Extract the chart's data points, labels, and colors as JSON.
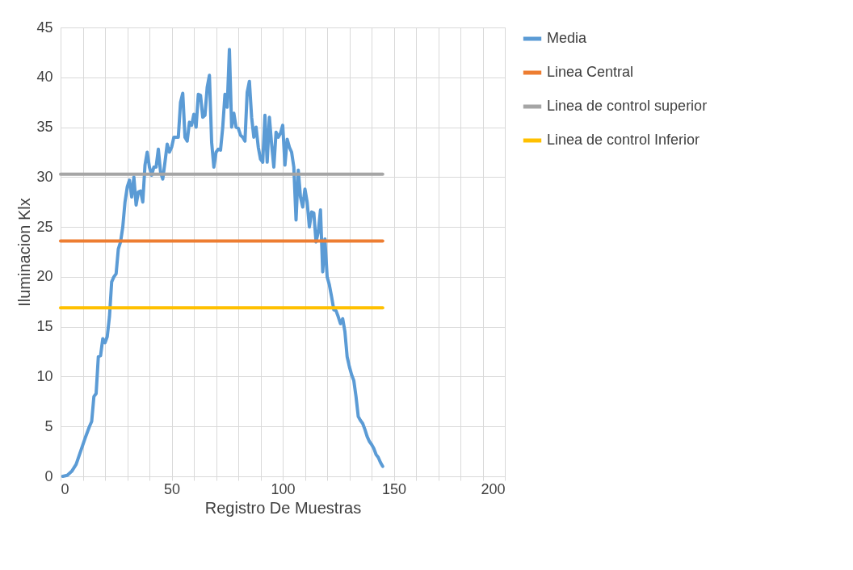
{
  "chart_data": {
    "type": "line",
    "xlabel": "Registro De Muestras",
    "ylabel": "Iluminacion Klx",
    "xlim": [
      0,
      200
    ],
    "ylim": [
      0,
      45
    ],
    "xticks": [
      0,
      {
        "value": 10,
        "label": null
      },
      {
        "value": 20,
        "label": null
      },
      {
        "value": 30,
        "label": null
      },
      {
        "value": 40,
        "label": null
      },
      50,
      {
        "value": 60,
        "label": null
      },
      {
        "value": 70,
        "label": null
      },
      {
        "value": 80,
        "label": null
      },
      {
        "value": 90,
        "label": null
      },
      100,
      {
        "value": 110,
        "label": null
      },
      {
        "value": 120,
        "label": null
      },
      {
        "value": 130,
        "label": null
      },
      {
        "value": 140,
        "label": null
      },
      150,
      {
        "value": 160,
        "label": null
      },
      {
        "value": 170,
        "label": null
      },
      {
        "value": 180,
        "label": null
      },
      {
        "value": 190,
        "label": null
      },
      200
    ],
    "yticks": [
      0,
      5,
      10,
      15,
      20,
      25,
      30,
      35,
      40,
      45
    ],
    "grid": true,
    "legend": "right",
    "marker": "none",
    "line_style": "solid",
    "series": [
      {
        "name": "Media",
        "color": "#5b9bd5",
        "x": [
          1,
          3,
          5,
          7,
          9,
          11,
          13,
          14,
          15,
          16,
          17,
          18,
          19,
          20,
          21,
          22,
          23,
          24,
          25,
          26,
          27,
          28,
          29,
          30,
          31,
          32,
          33,
          34,
          35,
          36,
          37,
          38,
          39,
          40,
          41,
          42,
          43,
          44,
          45,
          46,
          47,
          48,
          49,
          50,
          51,
          52,
          53,
          54,
          55,
          56,
          57,
          58,
          59,
          60,
          61,
          62,
          63,
          64,
          65,
          66,
          67,
          68,
          69,
          70,
          71,
          72,
          73,
          74,
          75,
          76,
          77,
          78,
          79,
          80,
          81,
          82,
          83,
          84,
          85,
          86,
          87,
          88,
          89,
          90,
          91,
          92,
          93,
          94,
          95,
          96,
          97,
          98,
          99,
          100,
          101,
          102,
          103,
          104,
          105,
          106,
          107,
          108,
          109,
          110,
          111,
          112,
          113,
          114,
          115,
          116,
          117,
          118,
          119,
          120,
          121,
          122,
          123,
          124,
          125,
          126,
          127,
          128,
          129,
          130,
          131,
          132,
          133,
          134,
          135,
          136,
          137,
          138,
          139,
          140,
          141,
          142,
          143,
          144,
          145
        ],
        "values": [
          0,
          0.1,
          0.5,
          1.2,
          2.5,
          3.8,
          5,
          5.5,
          8,
          8.3,
          12,
          12.1,
          13.8,
          13.4,
          14,
          16,
          19.5,
          20,
          20.3,
          22.8,
          23.5,
          25,
          27.5,
          29,
          29.7,
          28,
          30,
          27.2,
          28.5,
          28.6,
          27.5,
          31.2,
          32.5,
          31,
          30.2,
          31,
          31,
          32.8,
          30.5,
          29.8,
          31.5,
          33.3,
          32.5,
          33,
          34,
          34,
          34,
          37.5,
          38.4,
          34,
          33.6,
          35.5,
          35.2,
          36.3,
          35,
          38.3,
          38.2,
          36,
          36.2,
          39,
          40.2,
          33.5,
          31,
          32.5,
          32.8,
          32.7,
          35,
          38.3,
          37,
          42.8,
          35,
          36.4,
          35,
          34.9,
          34.2,
          34,
          33.6,
          38.5,
          39.6,
          36,
          34,
          35,
          33,
          31.8,
          31.5,
          36.2,
          31.5,
          36,
          33.3,
          31,
          34.5,
          34,
          34.4,
          35.2,
          31.2,
          33.8,
          33,
          32.5,
          31,
          25.7,
          30.7,
          28,
          27,
          28.8,
          27.5,
          25,
          26.5,
          26.4,
          23.5,
          24.5,
          26.7,
          20.5,
          23.8,
          20,
          19.2,
          18,
          16.7,
          16.6,
          16,
          15.3,
          15.8,
          14.5,
          12,
          11,
          10.2,
          9.6,
          8,
          6,
          5.6,
          5.3,
          4.7,
          4,
          3.5,
          3.2,
          2.8,
          2.2,
          1.9,
          1.4,
          1.0
        ]
      },
      {
        "name": "Linea Central",
        "color": "#ed7d31",
        "x": [
          0,
          145
        ],
        "values": [
          23.6,
          23.6
        ]
      },
      {
        "name": "Linea de control superior",
        "color": "#a5a5a5",
        "x": [
          0,
          145
        ],
        "values": [
          30.3,
          30.3
        ]
      },
      {
        "name": "Linea de control Inferior",
        "color": "#ffc000",
        "x": [
          0,
          145
        ],
        "values": [
          16.9,
          16.9
        ]
      }
    ]
  }
}
